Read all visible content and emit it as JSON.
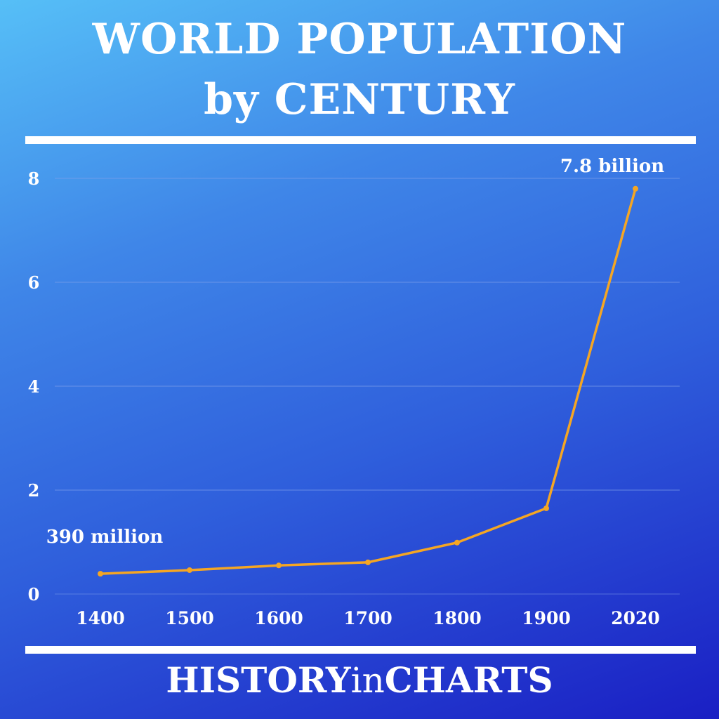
{
  "title": {
    "line1": "WORLD POPULATION",
    "line2": "by CENTURY"
  },
  "footer": {
    "part1": "HISTORY",
    "part2": "in",
    "part3": "CHARTS"
  },
  "colors": {
    "line": "#f5a623",
    "grid": "#7fa0ea",
    "text": "#ffffff",
    "background_top": "#56bff7",
    "background_bottom": "#1a1fc4"
  },
  "chart_data": {
    "type": "line",
    "categories": [
      "1400",
      "1500",
      "1600",
      "1700",
      "1800",
      "1900",
      "2020"
    ],
    "series": [
      {
        "values": [
          0.39,
          0.46,
          0.55,
          0.61,
          0.99,
          1.65,
          7.8
        ]
      }
    ],
    "yticks": [
      "0",
      "2",
      "4",
      "6",
      "8"
    ],
    "ylim": [
      0,
      8
    ],
    "grid": true,
    "annotations": [
      {
        "text": "390 million",
        "index": 0
      },
      {
        "text": "7.8 billion",
        "index": 6
      }
    ]
  }
}
